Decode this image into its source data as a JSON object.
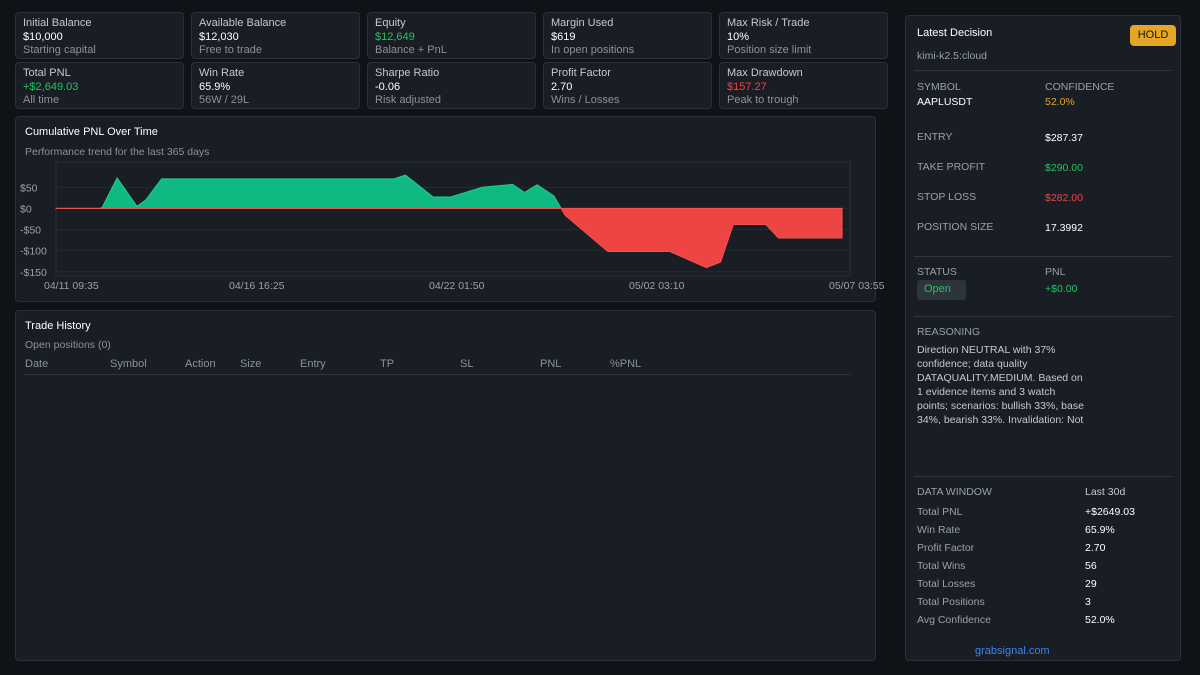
{
  "stats": [
    {
      "label": "Initial Balance",
      "value": "$10,000",
      "sub": "Starting capital",
      "color": "#ffffff"
    },
    {
      "label": "Available Balance",
      "value": "$12,030",
      "sub": "Free to trade",
      "color": "#ffffff"
    },
    {
      "label": "Equity",
      "value": "$12,649",
      "sub": "Balance + PnL",
      "color": "#22c55e"
    },
    {
      "label": "Margin Used",
      "value": "$619",
      "sub": "In open positions",
      "color": "#ffffff"
    },
    {
      "label": "Max Risk / Trade",
      "value": "10%",
      "sub": "Position size limit",
      "color": "#ffffff"
    },
    {
      "label": "Total PNL",
      "value": "+$2,649.03",
      "sub": "All time",
      "color": "#22c55e"
    },
    {
      "label": "Win Rate",
      "value": "65.9%",
      "sub": "56W / 29L",
      "color": "#ffffff"
    },
    {
      "label": "Sharpe Ratio",
      "value": "-0.06",
      "sub": "Risk adjusted",
      "color": "#ffffff"
    },
    {
      "label": "Profit Factor",
      "value": "2.70",
      "sub": "Wins / Losses",
      "color": "#ffffff"
    },
    {
      "label": "Max Drawdown",
      "value": "$157.27",
      "sub": "Peak to trough",
      "color": "#ef4444"
    }
  ],
  "pnl_chart": {
    "title": "Cumulative PNL Over Time",
    "subtitle": "Performance trend for the last 365 days"
  },
  "chart_data": {
    "type": "area",
    "title": "Cumulative PNL Over Time",
    "ylim": [
      -160,
      110
    ],
    "y_ticks": [
      50,
      0,
      -50,
      -100,
      -150
    ],
    "y_tick_labels": [
      "$50",
      "$0",
      "-$50",
      "-$100",
      "-$150"
    ],
    "x_tick_labels": [
      "04/11 09:35",
      "04/16 16:25",
      "04/22 01:50",
      "05/02 03:10",
      "05/07 03:55"
    ],
    "positive_color": "#10b981",
    "negative_color": "#ef4444",
    "x": [
      0,
      5.5,
      5.8,
      7.7,
      10.2,
      11.3,
      13.3,
      16.0,
      42.6,
      44.0,
      45.3,
      47.5,
      49.7,
      53.7,
      57.5,
      59.0,
      60.6,
      62.7,
      64.1,
      69.5,
      70.8,
      77.3,
      81.9,
      83.7,
      85.3,
      89.4,
      91.0,
      95.5,
      99
    ],
    "values": [
      0,
      0,
      2,
      72,
      5,
      20,
      70,
      70,
      70,
      79,
      60,
      27,
      27,
      50,
      57,
      38,
      56,
      30,
      -16,
      -102,
      -102,
      -102,
      -140,
      -127,
      -38,
      -38,
      -70,
      -70,
      -70
    ]
  },
  "trade_history": {
    "title": "Trade History",
    "subtitle": "Open positions (0)",
    "columns": [
      "Date",
      "Symbol",
      "Action",
      "Size",
      "Entry",
      "TP",
      "SL",
      "PNL",
      "%PNL"
    ]
  },
  "decision": {
    "title": "Latest Decision",
    "badge": "HOLD",
    "model": "kimi-k2.5:cloud",
    "symbol_label": "SYMBOL",
    "symbol": "AAPLUSDT",
    "confidence_label": "CONFIDENCE",
    "confidence": "52.0%",
    "entry_label": "ENTRY",
    "entry": "$287.37",
    "tp_label": "TAKE PROFIT",
    "tp": "$290.00",
    "sl_label": "STOP LOSS",
    "sl": "$282.00",
    "size_label": "POSITION SIZE",
    "size": "17.3992",
    "status_label": "STATUS",
    "status": "Open",
    "pnl_label": "PNL",
    "pnl": "+$0.00",
    "reasoning_label": "REASONING",
    "reasoning": "Direction NEUTRAL with 37% confidence; data quality DATAQUALITY.MEDIUM. Based on 1 evidence items and 3 watch points; scenarios: bullish 33%, base 34%, bearish 33%. Invalidation: Not"
  },
  "data_window": {
    "label": "DATA WINDOW",
    "period": "Last 30d",
    "rows": [
      {
        "label": "Total PNL",
        "value": "+$2649.03"
      },
      {
        "label": "Win Rate",
        "value": "65.9%"
      },
      {
        "label": "Profit Factor",
        "value": "2.70"
      },
      {
        "label": "Total Wins",
        "value": "56"
      },
      {
        "label": "Total Losses",
        "value": "29"
      },
      {
        "label": "Total Positions",
        "value": "3"
      },
      {
        "label": "Avg Confidence",
        "value": "52.0%"
      }
    ]
  },
  "footer_link": "grabsignal.com"
}
